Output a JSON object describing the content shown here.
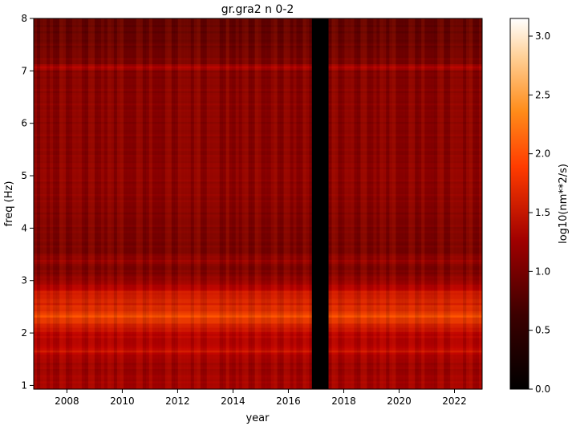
{
  "chart_data": {
    "type": "heatmap",
    "title": "gr.gra2 n 0-2",
    "xlabel": "year",
    "ylabel": "freq (Hz)",
    "x_range": [
      2006.8,
      2023.0
    ],
    "y_range": [
      0.93,
      8.0
    ],
    "x_ticks": [
      2008,
      2010,
      2012,
      2014,
      2016,
      2018,
      2020,
      2022
    ],
    "x_tick_labels": [
      "2008",
      "2010",
      "2012",
      "2014",
      "2016",
      "2018",
      "2020",
      "2022"
    ],
    "y_ticks": [
      1,
      2,
      3,
      4,
      5,
      6,
      7,
      8
    ],
    "y_tick_labels": [
      "1",
      "2",
      "3",
      "4",
      "5",
      "6",
      "7",
      "8"
    ],
    "colormap": "gist_heat",
    "colorbar": {
      "label": "log10(nm**2/s)",
      "range": [
        0.0,
        3.15
      ],
      "ticks": [
        0.0,
        0.5,
        1.0,
        1.5,
        2.0,
        2.5,
        3.0
      ],
      "tick_labels": [
        "0.0",
        "0.5",
        "1.0",
        "1.5",
        "2.0",
        "2.5",
        "3.0"
      ]
    },
    "data_gap": [
      2016.85,
      2017.45
    ],
    "frequency_profile": [
      {
        "freq": 0.93,
        "value": 1.45
      },
      {
        "freq": 1.05,
        "value": 1.35
      },
      {
        "freq": 1.15,
        "value": 1.4
      },
      {
        "freq": 1.25,
        "value": 1.3
      },
      {
        "freq": 1.45,
        "value": 1.35
      },
      {
        "freq": 1.6,
        "value": 1.5
      },
      {
        "freq": 1.68,
        "value": 1.75
      },
      {
        "freq": 1.75,
        "value": 1.5
      },
      {
        "freq": 1.9,
        "value": 1.5
      },
      {
        "freq": 2.05,
        "value": 1.65
      },
      {
        "freq": 2.2,
        "value": 1.85
      },
      {
        "freq": 2.33,
        "value": 2.05
      },
      {
        "freq": 2.45,
        "value": 1.85
      },
      {
        "freq": 2.6,
        "value": 1.8
      },
      {
        "freq": 2.75,
        "value": 1.75
      },
      {
        "freq": 2.85,
        "value": 1.6
      },
      {
        "freq": 2.95,
        "value": 1.35
      },
      {
        "freq": 3.1,
        "value": 1.15
      },
      {
        "freq": 3.25,
        "value": 1.0
      },
      {
        "freq": 3.4,
        "value": 1.3
      },
      {
        "freq": 3.55,
        "value": 1.0
      },
      {
        "freq": 4.0,
        "value": 1.05
      },
      {
        "freq": 4.5,
        "value": 1.15
      },
      {
        "freq": 5.0,
        "value": 1.2
      },
      {
        "freq": 5.5,
        "value": 1.15
      },
      {
        "freq": 6.0,
        "value": 1.15
      },
      {
        "freq": 6.5,
        "value": 1.15
      },
      {
        "freq": 7.0,
        "value": 1.1
      },
      {
        "freq": 7.07,
        "value": 1.55
      },
      {
        "freq": 7.15,
        "value": 1.05
      },
      {
        "freq": 7.5,
        "value": 0.9
      },
      {
        "freq": 8.0,
        "value": 0.8
      }
    ]
  }
}
